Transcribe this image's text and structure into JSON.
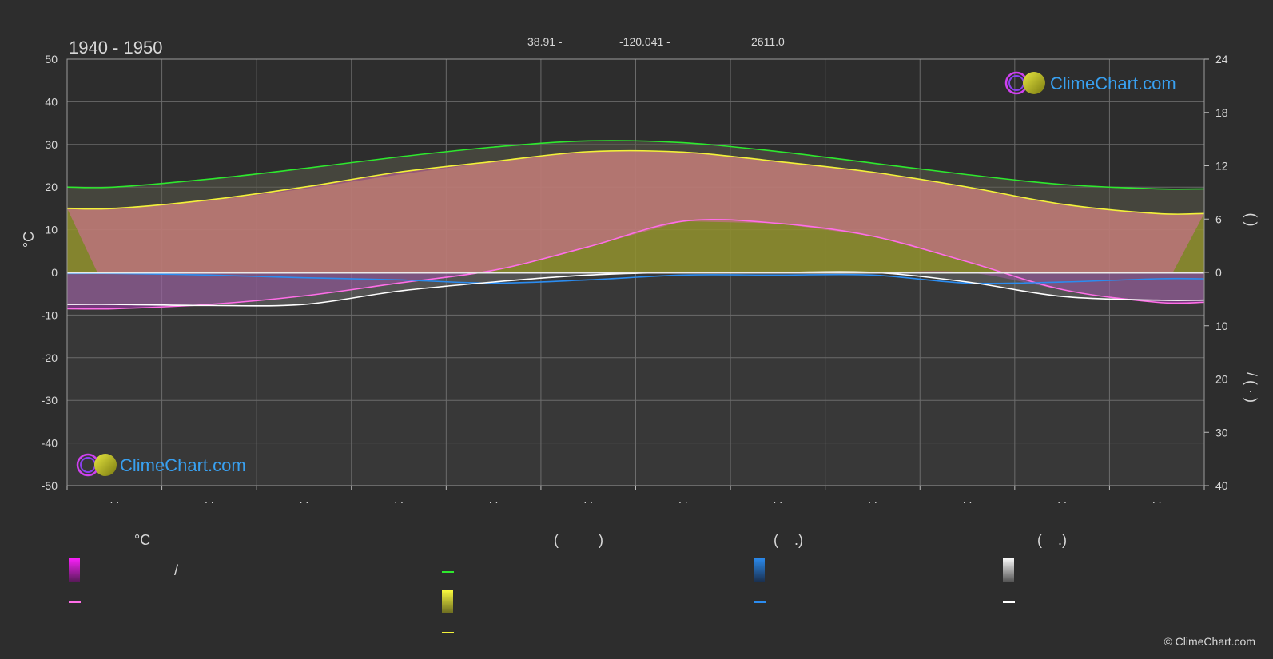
{
  "header": {
    "period": "1940 - 1950",
    "latitude": "38.91 -",
    "longitude": "-120.041 -",
    "elevation": "2611.0"
  },
  "logo": {
    "text": "ClimeChart.com"
  },
  "copyright": "© ClimeChart.com",
  "colors": {
    "background": "#2d2d2d",
    "grid": "#6a6a6a",
    "max_temp": "#2ee82e",
    "avg_max": "#f2f23a",
    "avg_min": "#ff6ee8",
    "precip": "#2b8cf0",
    "snow": "#ffffff",
    "sunshine_fill": "#9a9a2a",
    "temp_fill": "#d86aa8",
    "frost_fill": "#b030c0"
  },
  "legend": {
    "temp_header": "°C",
    "sun_header": "(          )",
    "rain_header": "(    .)",
    "snow_header": "(    .)",
    "slash": "/"
  },
  "chart_data": {
    "type": "area",
    "x": [
      1,
      2,
      3,
      4,
      5,
      6,
      7,
      8,
      9,
      10,
      11,
      12
    ],
    "months_tick_text": [
      " . .",
      " . .",
      " . .",
      " . .",
      " . .",
      " . .",
      " . .",
      " . .",
      " . .",
      " . .",
      " . .",
      " . ."
    ],
    "left_axis": {
      "label": "°C",
      "ylim": [
        -50,
        50
      ],
      "ticks": [
        50,
        40,
        30,
        20,
        10,
        0,
        -10,
        -20,
        -30,
        -40,
        -50
      ]
    },
    "right_axis_top": {
      "label": "(     )",
      "range": [
        0,
        24
      ],
      "ticks": [
        24,
        18,
        12,
        6,
        0
      ]
    },
    "right_axis_bottom": {
      "label": "/    (  ·   )",
      "range": [
        0,
        40
      ],
      "ticks": [
        10,
        20,
        30,
        40
      ]
    },
    "series": [
      {
        "key": "daylight",
        "axis": "right_hours",
        "values": [
          9.6,
          10.5,
          11.7,
          13.0,
          14.1,
          14.8,
          14.6,
          13.6,
          12.3,
          11.0,
          9.9,
          9.4
        ]
      },
      {
        "key": "sunshine",
        "axis": "right_hours",
        "values": [
          7.3,
          8.1,
          9.4,
          11.0,
          12.4,
          13.6,
          13.6,
          12.5,
          11.3,
          9.5,
          7.7,
          6.6
        ]
      },
      {
        "key": "avg_max_temp",
        "axis": "left",
        "values": [
          15,
          17,
          20,
          23.5,
          26,
          28.3,
          28.2,
          26,
          23.5,
          20,
          16,
          13.8
        ]
      },
      {
        "key": "avg_min_temp",
        "axis": "left",
        "values": [
          -8.5,
          -7.5,
          -5.5,
          -2.5,
          0.5,
          6,
          12,
          11.5,
          8.5,
          2.5,
          -4,
          -7
        ]
      },
      {
        "key": "snow",
        "axis": "right_mm_inverted",
        "values": [
          6,
          6.2,
          6.0,
          3.5,
          1.8,
          0.5,
          0,
          0,
          0,
          1.8,
          4.5,
          5.2
        ]
      },
      {
        "key": "precip",
        "axis": "right_mm_inverted",
        "values": [
          0.2,
          0.5,
          1.0,
          1.4,
          2.0,
          1.4,
          0.5,
          0.5,
          0.5,
          2.0,
          1.8,
          1.2
        ]
      }
    ]
  }
}
